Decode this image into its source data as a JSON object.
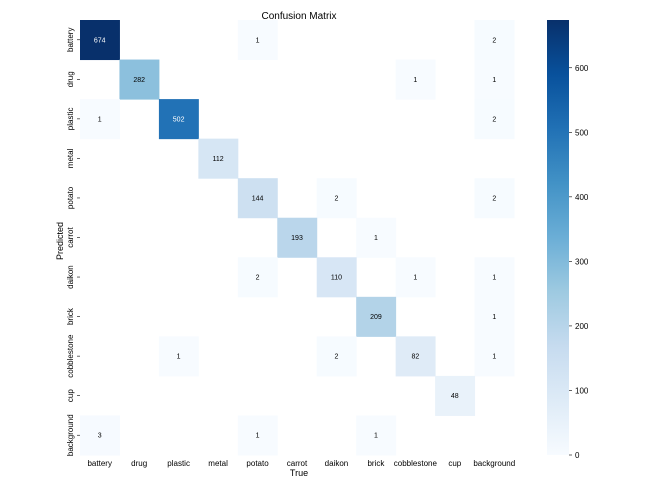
{
  "chart_data": {
    "type": "heatmap",
    "title": "Confusion Matrix",
    "xlabel": "True",
    "ylabel": "Predicted",
    "x_categories": [
      "battery",
      "drug",
      "plastic",
      "metal",
      "potato",
      "carrot",
      "daikon",
      "brick",
      "cobblestone",
      "cup",
      "background"
    ],
    "y_categories": [
      "battery",
      "drug",
      "plastic",
      "metal",
      "potato",
      "carrot",
      "daikon",
      "brick",
      "cobblestone",
      "cup",
      "background"
    ],
    "matrix": [
      [
        674,
        0,
        0,
        0,
        1,
        0,
        0,
        0,
        0,
        0,
        2
      ],
      [
        0,
        282,
        0,
        0,
        0,
        0,
        0,
        0,
        1,
        0,
        1
      ],
      [
        1,
        0,
        502,
        0,
        0,
        0,
        0,
        0,
        0,
        0,
        2
      ],
      [
        0,
        0,
        0,
        112,
        0,
        0,
        0,
        0,
        0,
        0,
        0
      ],
      [
        0,
        0,
        0,
        0,
        144,
        0,
        2,
        0,
        0,
        0,
        2
      ],
      [
        0,
        0,
        0,
        0,
        0,
        193,
        0,
        1,
        0,
        0,
        0
      ],
      [
        0,
        0,
        0,
        0,
        2,
        0,
        110,
        0,
        1,
        0,
        1
      ],
      [
        0,
        0,
        0,
        0,
        0,
        0,
        0,
        209,
        0,
        0,
        1
      ],
      [
        0,
        0,
        1,
        0,
        0,
        0,
        2,
        0,
        82,
        0,
        1
      ],
      [
        0,
        0,
        0,
        0,
        0,
        0,
        0,
        0,
        0,
        48,
        0
      ],
      [
        3,
        0,
        0,
        0,
        1,
        0,
        0,
        1,
        0,
        0,
        0
      ]
    ],
    "colorbar": {
      "range": [
        0,
        674
      ],
      "ticks": [
        0,
        100,
        200,
        300,
        400,
        500,
        600
      ]
    },
    "colormap": {
      "low": "#f7fbff",
      "high": "#08306b",
      "name": "Blues"
    }
  }
}
